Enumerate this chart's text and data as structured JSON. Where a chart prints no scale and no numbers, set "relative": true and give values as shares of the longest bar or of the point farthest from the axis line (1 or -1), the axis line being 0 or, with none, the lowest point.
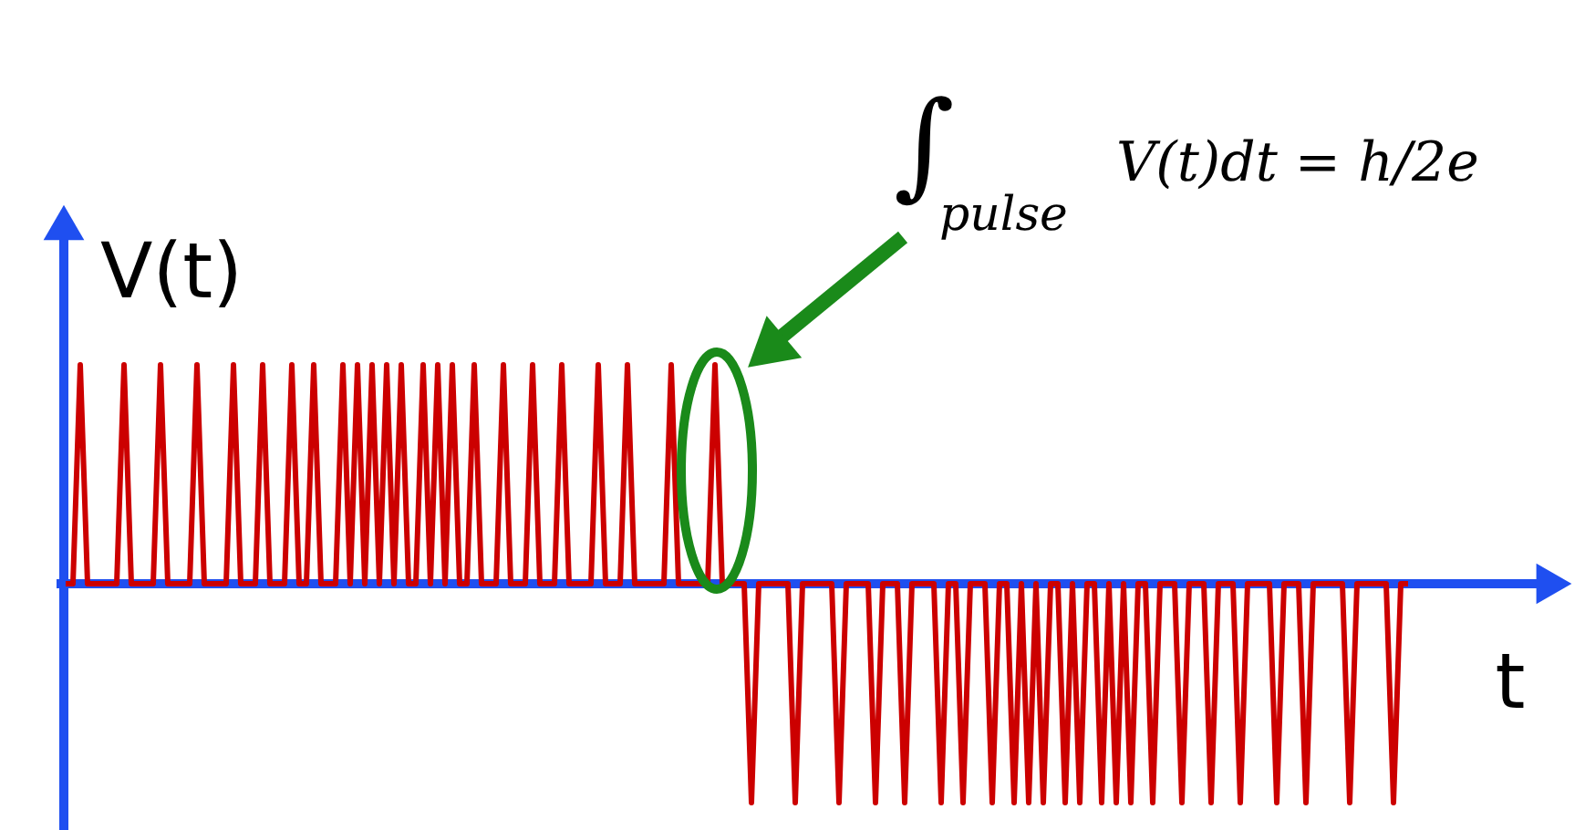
{
  "chart_data": {
    "type": "line",
    "relative": true,
    "xlabel": "t",
    "ylabel": "V(t)",
    "annotations": [
      "∫$_{pulse}$ V(t)dt = h/2e"
    ],
    "ref_lines": [
      {
        "axis": "y",
        "value": 0,
        "color": "#1f4ff0"
      }
    ],
    "categories": [
      null,
      null,
      null,
      null,
      null,
      null,
      null,
      null,
      null,
      null,
      null,
      null,
      null,
      null,
      null,
      null,
      null,
      null,
      null,
      null,
      null,
      null,
      null,
      null,
      null,
      null,
      null,
      null,
      null,
      null,
      null,
      null,
      null,
      null,
      null,
      null,
      null,
      null,
      null,
      null,
      null,
      null,
      null,
      null,
      null,
      null,
      null,
      null,
      null,
      null,
      null,
      null,
      null,
      null,
      null,
      null,
      null,
      null,
      null,
      null,
      null,
      null,
      null,
      null,
      null,
      null,
      null,
      null,
      null,
      null,
      null,
      null,
      null,
      null,
      null,
      null,
      null,
      null,
      null,
      null,
      null,
      null,
      null,
      null,
      null,
      null,
      null,
      null,
      null,
      null,
      null,
      null,
      null,
      null,
      null,
      null,
      null,
      null,
      null,
      null,
      null,
      null,
      null,
      null,
      null,
      null,
      null,
      null,
      null,
      null,
      null,
      null,
      null,
      null,
      null,
      null,
      null,
      null,
      null,
      null,
      null,
      null,
      null,
      null,
      null,
      null,
      null,
      null,
      null,
      null,
      null,
      null,
      null,
      null,
      null,
      null,
      null,
      null,
      null,
      null,
      null,
      null,
      null,
      null,
      null,
      null,
      null,
      null,
      null,
      null,
      null,
      null,
      null,
      null,
      null,
      null,
      null,
      null,
      null,
      null,
      null,
      null,
      null,
      null,
      null,
      null,
      null,
      null,
      null,
      null,
      null,
      null,
      null,
      null,
      null,
      null,
      null,
      null,
      null,
      null,
      null,
      null,
      null,
      null,
      null
    ],
    "series": [
      {
        "color": "#cc0000",
        "values": [
          0,
          0,
          1,
          0,
          0,
          0,
          0,
          0,
          1,
          0,
          0,
          0,
          0,
          1,
          0,
          0,
          0,
          0,
          1,
          0,
          0,
          0,
          0,
          1,
          0,
          0,
          0,
          1,
          0,
          0,
          0,
          1,
          0,
          0,
          1,
          0,
          0,
          0,
          1,
          0,
          1,
          0,
          1,
          0,
          1,
          0,
          1,
          0,
          0,
          1,
          0,
          1,
          0,
          1,
          0,
          0,
          1,
          0,
          0,
          0,
          1,
          0,
          0,
          0,
          1,
          0,
          0,
          0,
          1,
          0,
          0,
          0,
          0,
          1,
          0,
          0,
          0,
          1,
          0,
          0,
          0,
          0,
          0,
          1,
          0,
          0,
          0,
          0,
          0,
          1,
          0,
          0,
          0,
          0,
          -1,
          0,
          0,
          0,
          0,
          0,
          -1,
          0,
          0,
          0,
          0,
          0,
          -1,
          0,
          0,
          0,
          0,
          -1,
          0,
          0,
          0,
          -1,
          0,
          0,
          0,
          0,
          -1,
          0,
          0,
          -1,
          0,
          0,
          0,
          -1,
          0,
          0,
          -1,
          0,
          -1,
          0,
          -1,
          0,
          0,
          -1,
          0,
          -1,
          0,
          0,
          -1,
          0,
          -1,
          0,
          -1,
          0,
          0,
          -1,
          0,
          0,
          0,
          -1,
          0,
          0,
          0,
          -1,
          0,
          0,
          0,
          -1,
          0,
          0,
          0,
          0,
          -1,
          0,
          0,
          0,
          -1,
          0,
          0,
          0,
          0,
          0,
          -1,
          0,
          0,
          0,
          0,
          0,
          -1,
          0,
          0
        ]
      }
    ]
  }
}
